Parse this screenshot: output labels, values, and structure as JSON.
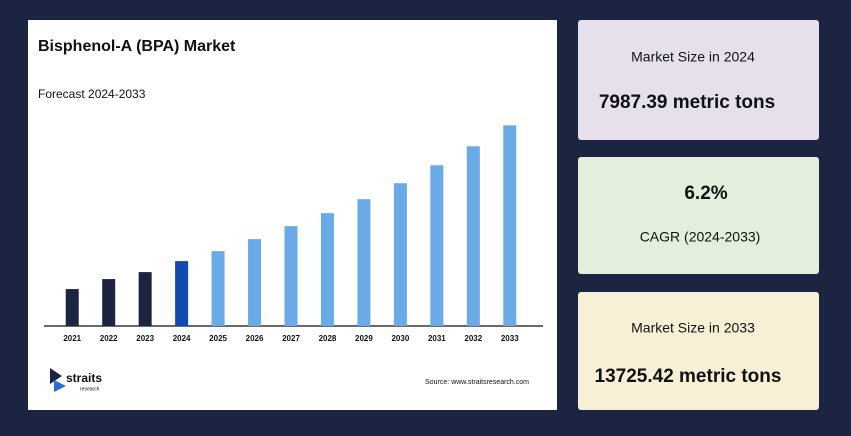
{
  "chart_data": {
    "type": "bar",
    "title": "Bisphenol-A (BPA) Market",
    "subtitle": "Forecast 2024-2033",
    "categories": [
      "2021",
      "2022",
      "2023",
      "2024",
      "2025",
      "2026",
      "2027",
      "2028",
      "2029",
      "2030",
      "2031",
      "2032",
      "2033"
    ],
    "values": [
      6806,
      7228,
      7523,
      7987.39,
      8409,
      8916,
      9464,
      10013,
      10604,
      11279,
      12038,
      12840,
      13725.42
    ],
    "colors": [
      "#1b2541",
      "#1b2541",
      "#1b2541",
      "#0f4bb0",
      "#6aaae6",
      "#6aaae6",
      "#6aaae6",
      "#6aaae6",
      "#6aaae6",
      "#6aaae6",
      "#6aaae6",
      "#6aaae6",
      "#6aaae6"
    ],
    "ylim": [
      5245,
      14500
    ],
    "source": "Source: www.straitsresearch.com"
  },
  "logo": {
    "name": "straits",
    "tagline": "research"
  },
  "cards": [
    {
      "label": "Market Size in 2024",
      "value": "7987.39 metric tons"
    },
    {
      "value": "6.2%",
      "label": "CAGR (2024-2033)"
    },
    {
      "label": "Market Size in 2033",
      "value": "13725.42 metric tons"
    }
  ]
}
